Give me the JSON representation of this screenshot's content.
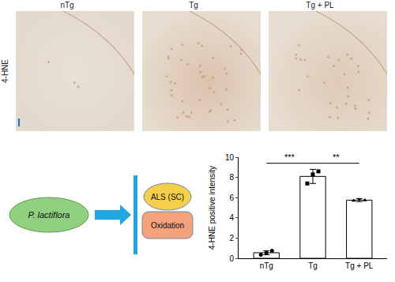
{
  "figure": {
    "panel_labels": [
      "nTg",
      "Tg",
      "Tg + PL"
    ],
    "stain_label": "4-HNE"
  },
  "diagram": {
    "agent": "P. lactiflora",
    "targets": [
      "ALS (SC)",
      "Oxidation"
    ]
  },
  "chart_data": {
    "type": "bar",
    "categories": [
      "nTg",
      "Tg",
      "Tg + PL"
    ],
    "values": [
      0.55,
      8.1,
      5.75
    ],
    "error": [
      0.2,
      0.7,
      0.15
    ],
    "points": [
      {
        "values": [
          0.35,
          0.55,
          0.75
        ],
        "marker": "circle"
      },
      {
        "values": [
          7.4,
          8.3,
          8.6
        ],
        "marker": "square"
      },
      {
        "values": [
          5.7,
          5.8,
          5.75
        ],
        "marker": "triangle-up"
      }
    ],
    "color": "#ffffff",
    "ylabel": "4-HNE positive intensity",
    "ylim": [
      0,
      10
    ],
    "yticks": [
      0,
      2,
      4,
      6,
      8,
      10
    ],
    "grid": false,
    "significance": [
      {
        "text": "***",
        "from": 0,
        "to": 1,
        "y": 9.4
      },
      {
        "text": "**",
        "from": 1,
        "to": 2,
        "y": 9.4
      }
    ]
  }
}
